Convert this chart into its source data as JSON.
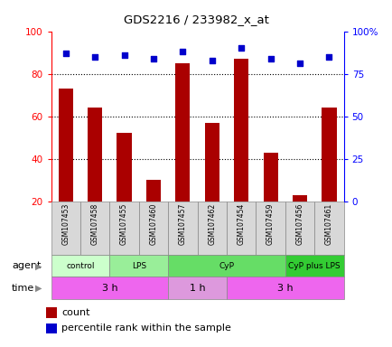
{
  "title": "GDS2216 / 233982_x_at",
  "samples": [
    "GSM107453",
    "GSM107458",
    "GSM107455",
    "GSM107460",
    "GSM107457",
    "GSM107462",
    "GSM107454",
    "GSM107459",
    "GSM107456",
    "GSM107461"
  ],
  "count_values": [
    73,
    64,
    52,
    30,
    85,
    57,
    87,
    43,
    23,
    64
  ],
  "percentile_values": [
    87,
    85,
    86,
    84,
    88,
    83,
    90,
    84,
    81,
    85
  ],
  "ylim_left": [
    20,
    100
  ],
  "ylim_right": [
    0,
    100
  ],
  "yticks_left": [
    20,
    40,
    60,
    80,
    100
  ],
  "yticks_right": [
    0,
    25,
    50,
    75,
    100
  ],
  "yticklabels_right": [
    "0",
    "25",
    "50",
    "75",
    "100%"
  ],
  "bar_color": "#aa0000",
  "dot_color": "#0000cc",
  "grid_color": "black",
  "agent_groups": [
    {
      "label": "control",
      "start": 0,
      "end": 2,
      "color": "#ccffcc"
    },
    {
      "label": "LPS",
      "start": 2,
      "end": 4,
      "color": "#99ee99"
    },
    {
      "label": "CyP",
      "start": 4,
      "end": 8,
      "color": "#66dd66"
    },
    {
      "label": "CyP plus LPS",
      "start": 8,
      "end": 10,
      "color": "#33cc33"
    }
  ],
  "time_groups": [
    {
      "label": "3 h",
      "start": 0,
      "end": 4,
      "color": "#ee66ee"
    },
    {
      "label": "1 h",
      "start": 4,
      "end": 6,
      "color": "#dd99dd"
    },
    {
      "label": "3 h",
      "start": 6,
      "end": 10,
      "color": "#ee66ee"
    }
  ],
  "legend_count_label": "count",
  "legend_pct_label": "percentile rank within the sample",
  "agent_label": "agent",
  "time_label": "time",
  "bar_width": 0.5
}
